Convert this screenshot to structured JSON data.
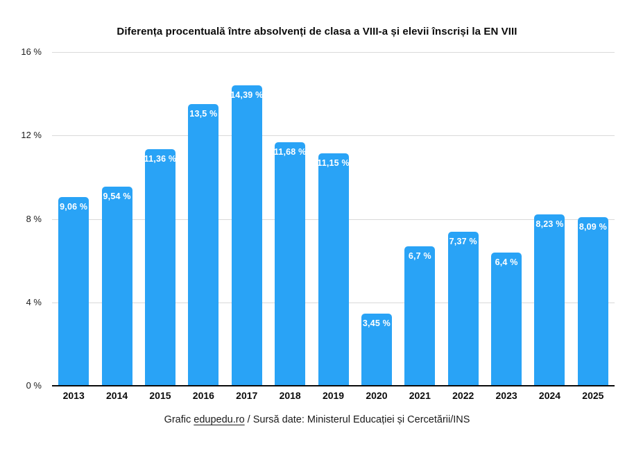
{
  "title": "Diferența procentuală între absolvenți de clasa a VIII-a și elevii înscriși la EN VIII",
  "footer": {
    "prefix": "Grafic ",
    "link": "edupedu.ro",
    "suffix": " / Sursă date: Ministerul Educației și Cercetării/INS"
  },
  "colors": {
    "bar": "#29a3f6",
    "bar_label": "#ffffff",
    "gridline": "#d9d9d9",
    "axis": "#0a0a0a"
  },
  "chart_data": {
    "type": "bar",
    "title": "Diferența procentuală între absolvenți de clasa a VIII-a și elevii înscriși la EN VIII",
    "categories": [
      "2013",
      "2014",
      "2015",
      "2016",
      "2017",
      "2018",
      "2019",
      "2020",
      "2021",
      "2022",
      "2023",
      "2024",
      "2025"
    ],
    "values": [
      9.06,
      9.54,
      11.36,
      13.5,
      14.39,
      11.68,
      11.15,
      3.45,
      6.7,
      7.37,
      6.4,
      8.23,
      8.09
    ],
    "value_labels": [
      "9,06 %",
      "9,54 %",
      "11,36 %",
      "13,5 %",
      "14,39 %",
      "11,68 %",
      "11,15 %",
      "3,45 %",
      "6,7 %",
      "7,37 %",
      "6,4 %",
      "8,23 %",
      "8,09 %"
    ],
    "xlabel": "",
    "ylabel": "",
    "ylim": [
      0,
      16
    ],
    "yticks_values": [
      16,
      12,
      8,
      4,
      0
    ],
    "ytick_labels": [
      "16 %",
      "12 %",
      "8 %",
      "4 %",
      "0 %"
    ],
    "grid": true,
    "legend": false,
    "caption": "Grafic edupedu.ro / Sursă date: Ministerul Educației și Cercetării/INS"
  }
}
